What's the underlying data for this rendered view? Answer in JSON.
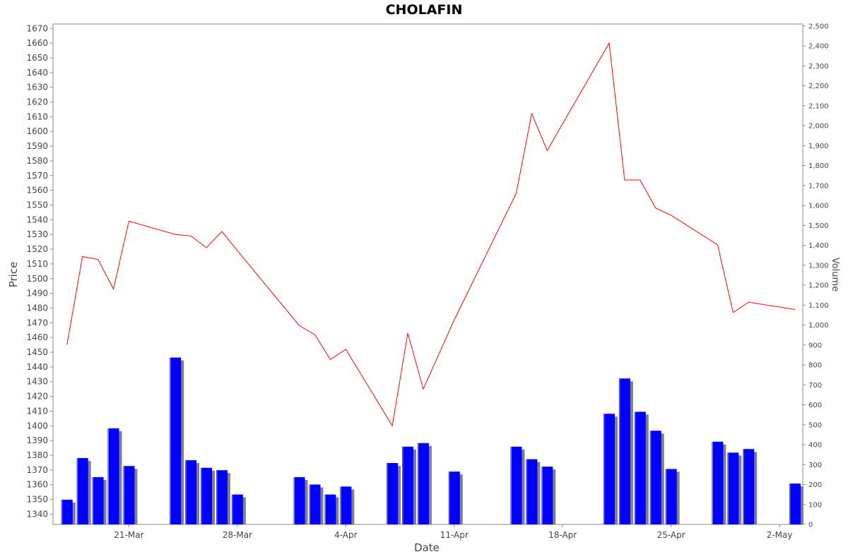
{
  "chart_data": {
    "type": "line+bar",
    "title": "CHOLAFIN",
    "xlabel": "Date",
    "ylabel": "Price",
    "y2label": "Volume",
    "ylim": [
      1333,
      1673
    ],
    "y2lim": [
      0,
      2510
    ],
    "x_ticks": [
      {
        "label": "21-Mar",
        "day": 4
      },
      {
        "label": "28-Mar",
        "day": 11
      },
      {
        "label": "4-Apr",
        "day": 18
      },
      {
        "label": "11-Apr",
        "day": 25
      },
      {
        "label": "18-Apr",
        "day": 32
      },
      {
        "label": "25-Apr",
        "day": 39
      },
      {
        "label": "2-May",
        "day": 46
      }
    ],
    "x_range": [
      -0.9,
      47.5
    ],
    "y_ticks": [
      1340,
      1350,
      1360,
      1370,
      1380,
      1390,
      1400,
      1410,
      1420,
      1430,
      1440,
      1450,
      1460,
      1470,
      1480,
      1490,
      1500,
      1510,
      1520,
      1530,
      1540,
      1550,
      1560,
      1570,
      1580,
      1590,
      1600,
      1610,
      1620,
      1630,
      1640,
      1650,
      1660,
      1670
    ],
    "y2_ticks": [
      {
        "v": 0,
        "label": "0"
      },
      {
        "v": 100,
        "label": "100"
      },
      {
        "v": 200,
        "label": "200"
      },
      {
        "v": 300,
        "label": "300"
      },
      {
        "v": 400,
        "label": "400"
      },
      {
        "v": 500,
        "label": "500"
      },
      {
        "v": 600,
        "label": "600"
      },
      {
        "v": 700,
        "label": "700"
      },
      {
        "v": 800,
        "label": "800"
      },
      {
        "v": 900,
        "label": "900"
      },
      {
        "v": 1000,
        "label": "1,000"
      },
      {
        "v": 1100,
        "label": "1,100"
      },
      {
        "v": 1200,
        "label": "1,200"
      },
      {
        "v": 1300,
        "label": "1,300"
      },
      {
        "v": 1400,
        "label": "1,400"
      },
      {
        "v": 1500,
        "label": "1,500"
      },
      {
        "v": 1600,
        "label": "1,600"
      },
      {
        "v": 1700,
        "label": "1,700"
      },
      {
        "v": 1800,
        "label": "1,800"
      },
      {
        "v": 1900,
        "label": "1,900"
      },
      {
        "v": 2000,
        "label": "2,000"
      },
      {
        "v": 2100,
        "label": "2,100"
      },
      {
        "v": 2200,
        "label": "2,200"
      },
      {
        "v": 2300,
        "label": "2,300"
      },
      {
        "v": 2400,
        "label": "2,400"
      },
      {
        "v": 2500,
        "label": "2,500"
      }
    ],
    "price_series": {
      "color": "#ff0000",
      "points": [
        {
          "day": 0,
          "price": 1455
        },
        {
          "day": 1,
          "price": 1515
        },
        {
          "day": 2,
          "price": 1513
        },
        {
          "day": 3,
          "price": 1493
        },
        {
          "day": 4,
          "price": 1539
        },
        {
          "day": 7,
          "price": 1530
        },
        {
          "day": 8,
          "price": 1529
        },
        {
          "day": 9,
          "price": 1521
        },
        {
          "day": 10,
          "price": 1532
        },
        {
          "day": 11,
          "price": 1519
        },
        {
          "day": 15,
          "price": 1468
        },
        {
          "day": 16,
          "price": 1462
        },
        {
          "day": 17,
          "price": 1445
        },
        {
          "day": 18,
          "price": 1452
        },
        {
          "day": 21,
          "price": 1400
        },
        {
          "day": 22,
          "price": 1463
        },
        {
          "day": 23,
          "price": 1425
        },
        {
          "day": 25,
          "price": 1472
        },
        {
          "day": 29,
          "price": 1558
        },
        {
          "day": 30,
          "price": 1612
        },
        {
          "day": 31,
          "price": 1587
        },
        {
          "day": 35,
          "price": 1660
        },
        {
          "day": 36,
          "price": 1567
        },
        {
          "day": 37,
          "price": 1567
        },
        {
          "day": 38,
          "price": 1548
        },
        {
          "day": 39,
          "price": 1543
        },
        {
          "day": 42,
          "price": 1523
        },
        {
          "day": 43,
          "price": 1477
        },
        {
          "day": 44,
          "price": 1484
        },
        {
          "day": 47,
          "price": 1479
        }
      ]
    },
    "volume_series": {
      "color": "#0000ff",
      "shadow_color": "#808080",
      "bars": [
        {
          "day": 0,
          "volume": 124
        },
        {
          "day": 1,
          "volume": 333
        },
        {
          "day": 2,
          "volume": 237
        },
        {
          "day": 3,
          "volume": 482
        },
        {
          "day": 4,
          "volume": 293
        },
        {
          "day": 7,
          "volume": 837
        },
        {
          "day": 8,
          "volume": 322
        },
        {
          "day": 9,
          "volume": 284
        },
        {
          "day": 10,
          "volume": 272
        },
        {
          "day": 11,
          "volume": 150
        },
        {
          "day": 15,
          "volume": 237
        },
        {
          "day": 16,
          "volume": 200
        },
        {
          "day": 17,
          "volume": 150
        },
        {
          "day": 18,
          "volume": 190
        },
        {
          "day": 21,
          "volume": 308
        },
        {
          "day": 22,
          "volume": 390
        },
        {
          "day": 23,
          "volume": 408
        },
        {
          "day": 25,
          "volume": 265
        },
        {
          "day": 29,
          "volume": 390
        },
        {
          "day": 30,
          "volume": 327
        },
        {
          "day": 31,
          "volume": 290
        },
        {
          "day": 35,
          "volume": 555
        },
        {
          "day": 36,
          "volume": 732
        },
        {
          "day": 37,
          "volume": 565
        },
        {
          "day": 38,
          "volume": 470
        },
        {
          "day": 39,
          "volume": 278
        },
        {
          "day": 42,
          "volume": 415
        },
        {
          "day": 43,
          "volume": 360
        },
        {
          "day": 44,
          "volume": 378
        },
        {
          "day": 47,
          "volume": 205
        }
      ]
    }
  }
}
